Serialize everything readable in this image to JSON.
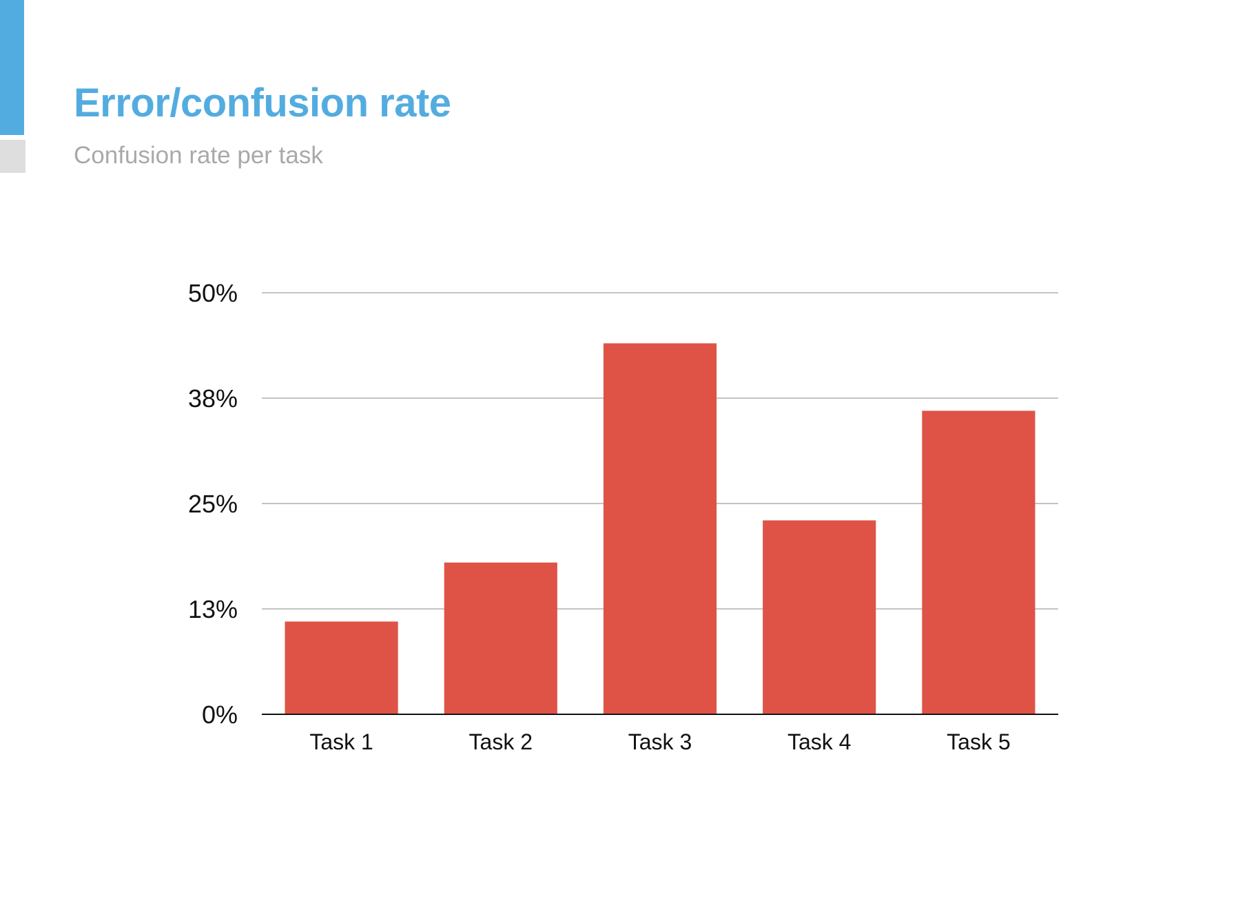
{
  "header": {
    "title": "Error/confusion rate",
    "subtitle": "Confusion rate per task"
  },
  "colors": {
    "accent": "#53ace0",
    "accent_secondary": "#dedede",
    "title": "#53ace0",
    "subtitle": "#a9a9a9",
    "bar": "#df5346",
    "grid": "#c4c4c4",
    "axis": "#111111"
  },
  "chart_data": {
    "type": "bar",
    "categories": [
      "Task 1",
      "Task 2",
      "Task 3",
      "Task 4",
      "Task 5"
    ],
    "values": [
      11,
      18,
      44,
      23,
      36
    ],
    "unit": "%",
    "yticks": [
      0,
      12.5,
      25,
      37.5,
      50
    ],
    "ytick_labels": [
      "0%",
      "13%",
      "25%",
      "38%",
      "50%"
    ],
    "ylim": [
      0,
      50
    ],
    "grid": true,
    "legend": "none",
    "title": "",
    "xlabel": "",
    "ylabel": ""
  }
}
